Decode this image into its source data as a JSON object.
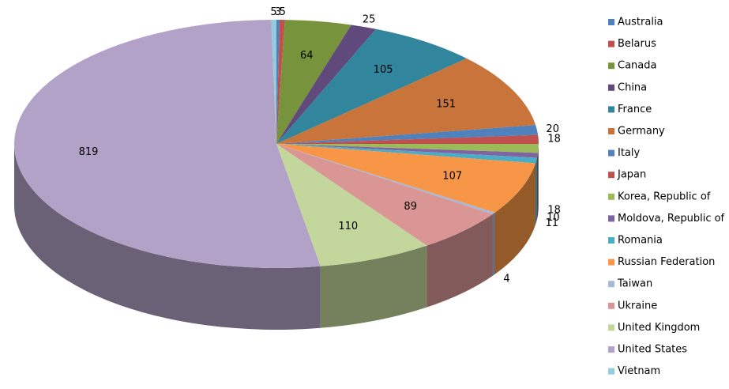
{
  "chart_data": {
    "type": "pie",
    "categories": [
      "Australia",
      "Belarus",
      "Canada",
      "China",
      "France",
      "Germany",
      "Italy",
      "Japan",
      "Korea, Republic of",
      "Moldova, Republic of",
      "Romania",
      "Russian Federation",
      "Taiwan",
      "Ukraine",
      "United Kingdom",
      "United States",
      "Vietnam"
    ],
    "values": [
      3,
      5,
      64,
      25,
      105,
      151,
      20,
      18,
      18,
      10,
      11,
      107,
      4,
      89,
      110,
      819,
      5
    ],
    "colors": [
      "#4f81bd",
      "#c0504d",
      "#77933c",
      "#604a7b",
      "#31859c",
      "#c8743a",
      "#4f81bd",
      "#c0504d",
      "#9bbb59",
      "#8064a2",
      "#4bacc6",
      "#f79646",
      "#a6b9d8",
      "#d99694",
      "#c3d69b",
      "#b3a2c7",
      "#93cddd"
    ],
    "legend": "right"
  }
}
